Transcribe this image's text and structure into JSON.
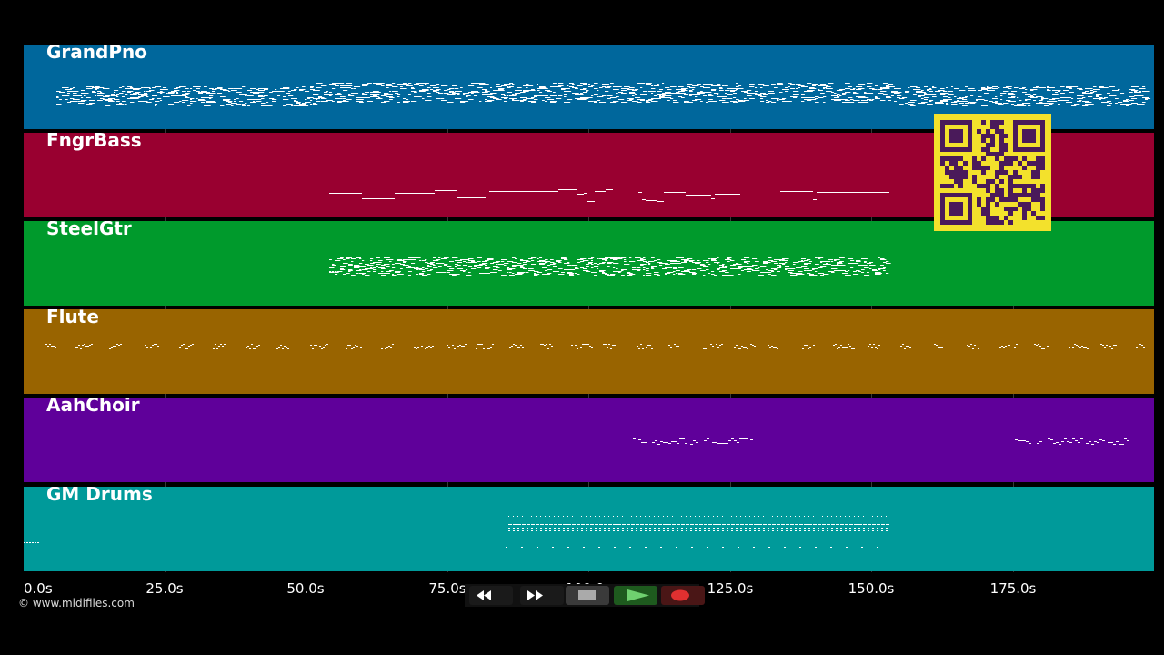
{
  "lanes": [
    {
      "name": "GrandPno",
      "color": "#00679c"
    },
    {
      "name": "FngrBass",
      "color": "#990030"
    },
    {
      "name": "SteelGtr",
      "color": "#009a2c"
    },
    {
      "name": "Flute",
      "color": "#996400"
    },
    {
      "name": "AahChoir",
      "color": "#5f009a"
    },
    {
      "name": "GM Drums",
      "color": "#009a9a"
    }
  ],
  "timeline": {
    "ticks": [
      "0.0s",
      "25.0s",
      "50.0s",
      "75.0s",
      "100.0s",
      "125.0s",
      "150.0s",
      "175.0s"
    ]
  },
  "copyright": "© www.midifiles.com",
  "transport": {
    "rewind": "rewind-icon",
    "fast_forward": "fast-forward-icon",
    "stop": "stop-icon",
    "play": "play-icon",
    "record": "record-icon"
  },
  "qr": "qr-code"
}
